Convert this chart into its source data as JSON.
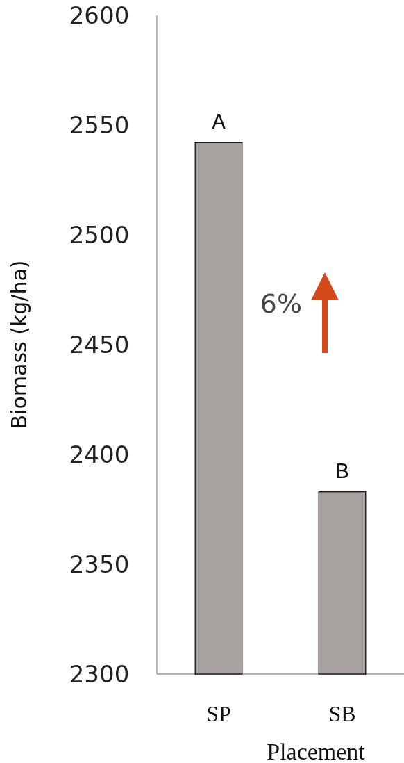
{
  "chart_data": {
    "type": "bar",
    "xlabel": "Placement",
    "ylabel": "Biomass (kg/ha)",
    "categories": [
      "SP",
      "SB"
    ],
    "values": [
      2542,
      2383
    ],
    "color": "#a7a2a0",
    "ylim": [
      2300,
      2600
    ],
    "yticks": [
      2300,
      2350,
      2400,
      2450,
      2500,
      2550,
      2600
    ],
    "annotations": [
      {
        "text": "A",
        "x": "SP",
        "y": 2542
      },
      {
        "text": "B",
        "x": "SB",
        "y": 2383
      },
      "6%"
    ]
  }
}
